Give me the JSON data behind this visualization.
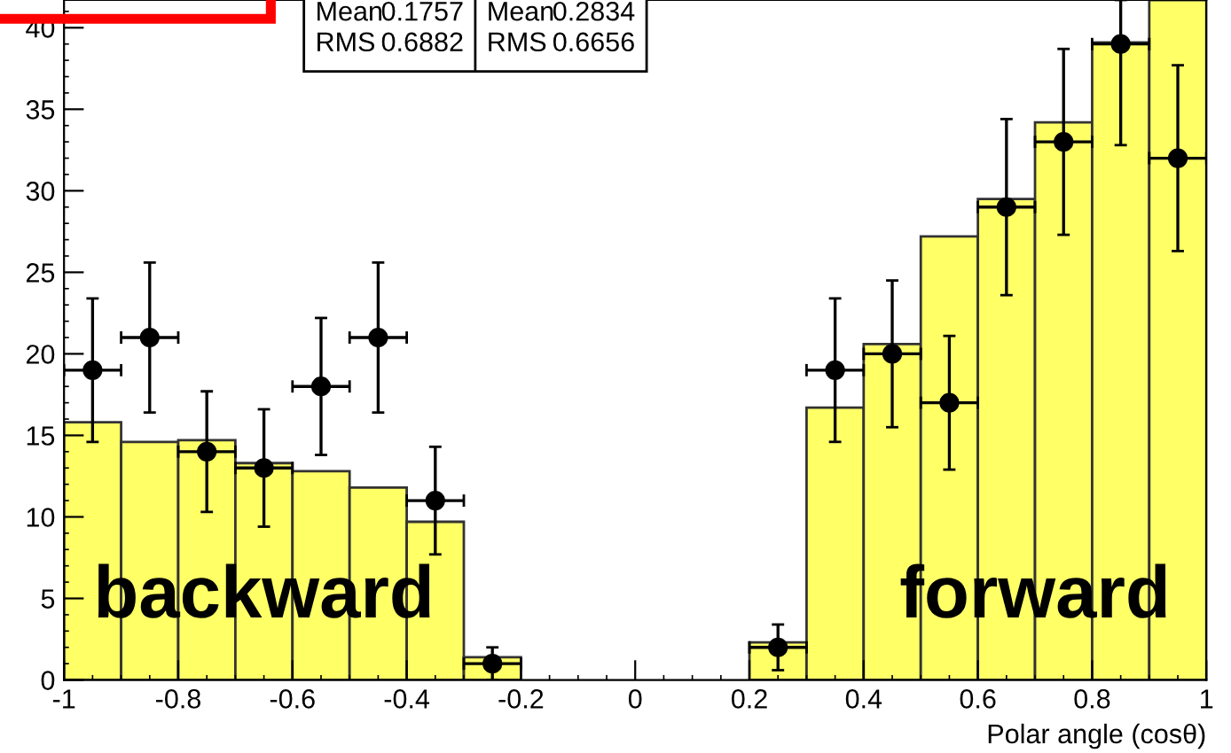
{
  "chart_data": {
    "type": "histogram",
    "xlabel": "Polar angle (cosθ)",
    "xlim": [
      -1,
      1
    ],
    "xticks": [
      -1,
      -0.8,
      -0.6,
      -0.4,
      -0.2,
      0,
      0.2,
      0.4,
      0.6,
      0.8,
      1
    ],
    "ylim": [
      0,
      41.7
    ],
    "yticks": [
      0,
      5,
      10,
      15,
      20,
      25,
      30,
      35,
      40
    ],
    "grid": false,
    "legend": false,
    "marker": "circle",
    "series": [
      {
        "color": "#ffff66",
        "bins": [
          -1,
          -0.9,
          -0.8,
          -0.7,
          -0.6,
          -0.5,
          -0.4,
          -0.3,
          -0.2,
          -0.1,
          0,
          0.1,
          0.2,
          0.3,
          0.4,
          0.5,
          0.6,
          0.7,
          0.8,
          0.9,
          1
        ],
        "values": [
          15.8,
          14.6,
          14.7,
          13.3,
          12.8,
          11.8,
          9.7,
          1.4,
          null,
          null,
          null,
          null,
          2.3,
          16.7,
          20.6,
          27.2,
          29.5,
          34.2,
          39.1,
          41.7
        ]
      },
      {
        "type": "scatter",
        "color": "#000000",
        "x": [
          -0.95,
          -0.85,
          -0.75,
          -0.65,
          -0.55,
          -0.45,
          -0.35,
          -0.25,
          0.25,
          0.35,
          0.45,
          0.55,
          0.65,
          0.75,
          0.85,
          0.95
        ],
        "values": [
          19,
          21,
          14,
          13,
          18,
          21,
          11,
          1,
          2,
          19,
          20,
          17,
          29,
          33,
          39,
          32
        ],
        "errors": [
          4.4,
          4.6,
          3.7,
          3.6,
          4.2,
          4.6,
          3.3,
          1,
          1.4,
          4.4,
          4.5,
          4.1,
          5.4,
          5.7,
          [
            32.8,
            41.7
          ],
          5.7
        ],
        "xerrors": [
          0.05,
          0.05,
          0.05,
          0.05,
          0.05,
          0.05,
          0.05,
          0.05,
          0.05,
          0.05,
          0.05,
          0.05,
          0.05,
          0.05,
          0.05,
          0.05
        ]
      }
    ],
    "annotations": [
      "backward",
      "forward",
      "Mean",
      "0.1757",
      "Mean",
      "0.2834",
      "RMS",
      "0.6882",
      "RMS",
      "0.6656"
    ]
  }
}
